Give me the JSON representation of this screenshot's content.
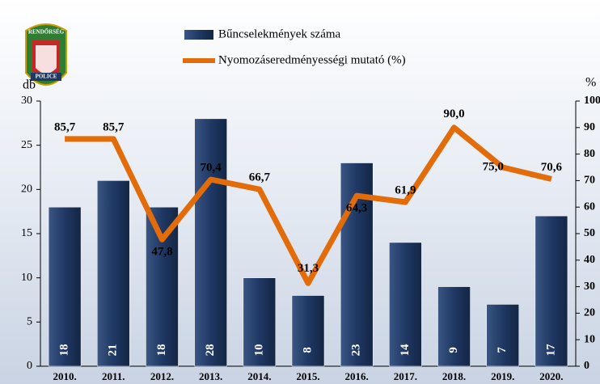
{
  "chart_data": {
    "type": "bar+line",
    "logo": {
      "top": "RENDŐRSÉG",
      "bottom": "POLICE"
    },
    "y_label": "db",
    "y2_label": "%",
    "categories": [
      "2010.",
      "2011.",
      "2012.",
      "2013.",
      "2014.",
      "2015.",
      "2016.",
      "2017.",
      "2018.",
      "2019.",
      "2020."
    ],
    "series": [
      {
        "name": "Bűncselekmények száma",
        "type": "bar",
        "color": "#1f3864",
        "values": [
          18,
          21,
          18,
          28,
          10,
          8,
          23,
          14,
          9,
          7,
          17
        ]
      },
      {
        "name": "Nyomozáseredményességi mutató (%)",
        "type": "line",
        "axis": "y2",
        "color": "#e36c0a",
        "values": [
          85.7,
          85.7,
          47.8,
          70.4,
          66.7,
          31.3,
          64.3,
          61.9,
          90.0,
          75.0,
          70.6
        ],
        "value_labels": [
          "85,7",
          "85,7",
          "47,8",
          "70,4",
          "66,7",
          "31,3",
          "64,3",
          "61,9",
          "90,0",
          "75,0",
          "70,6"
        ]
      }
    ],
    "ylim": [
      0,
      30
    ],
    "yticks": [
      0,
      5,
      10,
      15,
      20,
      25,
      30
    ],
    "y2lim": [
      0,
      100
    ],
    "y2ticks": [
      0,
      10,
      20,
      30,
      40,
      50,
      60,
      70,
      80,
      90,
      100
    ]
  }
}
